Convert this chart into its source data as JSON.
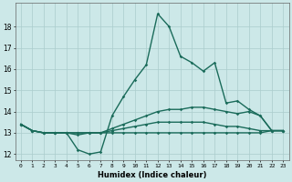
{
  "xlabel": "Humidex (Indice chaleur)",
  "bg_color": "#cce8e8",
  "grid_color": "#aacccc",
  "line_color": "#1a6b5a",
  "x_labels": [
    "0",
    "1",
    "2",
    "3",
    "4",
    "5",
    "6",
    "7",
    "8",
    "9",
    "10",
    "11",
    "12",
    "13",
    "14",
    "15",
    "16",
    "17",
    "18",
    "19",
    "20",
    "21",
    "22",
    "23"
  ],
  "series": [
    [
      13.4,
      13.1,
      13.0,
      13.0,
      13.0,
      12.2,
      12.0,
      12.1,
      13.8,
      14.7,
      15.5,
      16.2,
      18.6,
      18.0,
      16.6,
      16.3,
      15.9,
      16.3,
      14.4,
      14.5,
      14.1,
      13.8,
      13.1,
      13.1
    ],
    [
      13.4,
      13.1,
      13.0,
      13.0,
      13.0,
      12.9,
      13.0,
      13.0,
      13.2,
      13.4,
      13.6,
      13.8,
      14.0,
      14.1,
      14.1,
      14.2,
      14.2,
      14.1,
      14.0,
      13.9,
      14.0,
      13.8,
      13.1,
      13.1
    ],
    [
      13.4,
      13.1,
      13.0,
      13.0,
      13.0,
      13.0,
      13.0,
      13.0,
      13.1,
      13.2,
      13.3,
      13.4,
      13.5,
      13.5,
      13.5,
      13.5,
      13.5,
      13.4,
      13.3,
      13.3,
      13.2,
      13.1,
      13.1,
      13.1
    ],
    [
      13.4,
      13.1,
      13.0,
      13.0,
      13.0,
      13.0,
      13.0,
      13.0,
      13.0,
      13.0,
      13.0,
      13.0,
      13.0,
      13.0,
      13.0,
      13.0,
      13.0,
      13.0,
      13.0,
      13.0,
      13.0,
      13.0,
      13.1,
      13.1
    ]
  ],
  "ylim": [
    11.7,
    19.1
  ],
  "yticks": [
    12,
    13,
    14,
    15,
    16,
    17,
    18
  ],
  "xlim": [
    -0.5,
    23.5
  ]
}
